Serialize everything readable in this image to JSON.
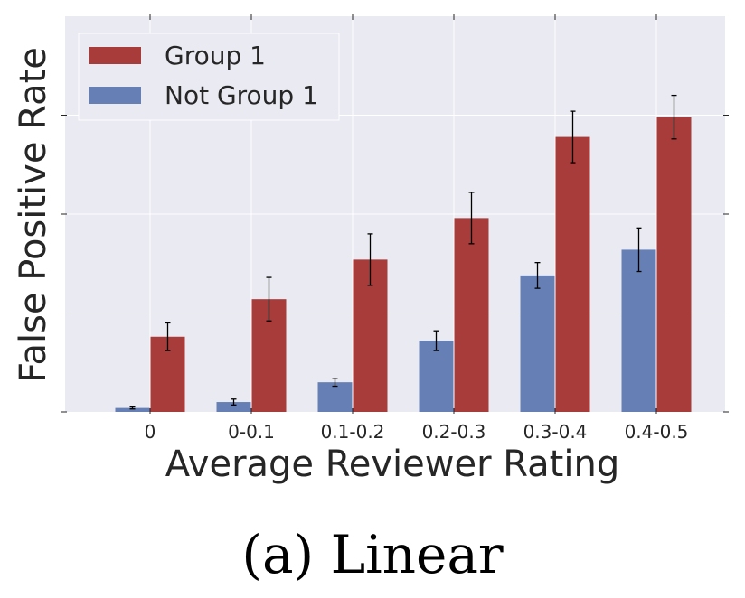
{
  "chart_data": {
    "type": "bar",
    "title": "",
    "xlabel": "Average Reviewer Rating",
    "ylabel": "False Positive Rate",
    "categories": [
      "0",
      "0-0.1",
      "0.1-0.2",
      "0.2-0.3",
      "0.3-0.4",
      "0.4-0.5"
    ],
    "ylim": [
      0,
      2.0
    ],
    "y_ticks": [
      0,
      0.5,
      1.0,
      1.5
    ],
    "y_tick_labels_shown": false,
    "grid": true,
    "legend_position": "top-left",
    "series": [
      {
        "name": "Not Group 1",
        "color": "#6680b5",
        "values": [
          0.02,
          0.05,
          0.15,
          0.36,
          0.69,
          0.82
        ],
        "errors": [
          0.005,
          0.015,
          0.02,
          0.05,
          0.065,
          0.11
        ]
      },
      {
        "name": "Group 1",
        "color": "#a83c3a",
        "values": [
          0.38,
          0.57,
          0.77,
          0.98,
          1.39,
          1.49
        ],
        "errors": [
          0.07,
          0.11,
          0.13,
          0.13,
          0.13,
          0.11
        ]
      }
    ]
  },
  "caption": "(a) Linear"
}
